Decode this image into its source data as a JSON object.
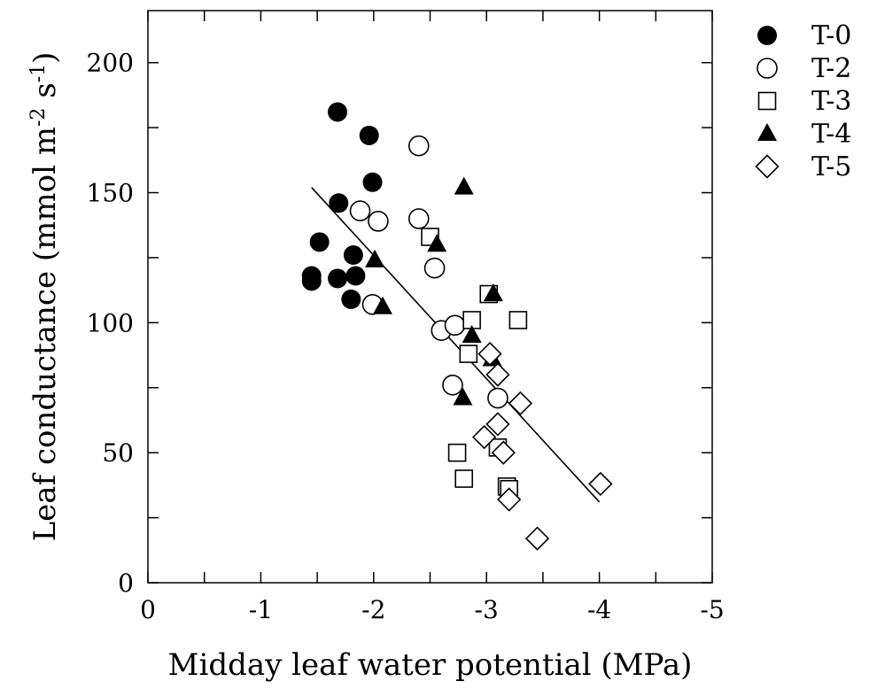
{
  "chart_data": {
    "type": "scatter",
    "title": "",
    "xlabel": "Midday leaf water potential (MPa)",
    "ylabel": {
      "main": "Leaf conductance (mmol m",
      "sup1": "-2",
      "mid": " s",
      "sup2": "-1",
      "end": ")"
    },
    "xlim": [
      0,
      -5
    ],
    "ylim": [
      0,
      220
    ],
    "x_ticks": [
      0,
      -1,
      -2,
      -3,
      -4,
      -5
    ],
    "x_tick_labels": [
      "0",
      "-1",
      "-2",
      "-3",
      "-4",
      "-5"
    ],
    "y_ticks": [
      0,
      50,
      100,
      150,
      200
    ],
    "y_tick_labels": [
      "0",
      "50",
      "100",
      "150",
      "200"
    ],
    "grid": false,
    "legend_position": "outside-right-top",
    "series": [
      {
        "name": "T-0",
        "marker": "circle-filled",
        "points": [
          [
            -1.68,
            181
          ],
          [
            -1.96,
            172
          ],
          [
            -1.99,
            154
          ],
          [
            -1.69,
            146
          ],
          [
            -1.52,
            131
          ],
          [
            -1.82,
            126
          ],
          [
            -1.45,
            118
          ],
          [
            -1.45,
            116
          ],
          [
            -1.68,
            117
          ],
          [
            -1.84,
            118
          ],
          [
            -1.8,
            109
          ]
        ]
      },
      {
        "name": "T-2",
        "marker": "circle-open",
        "points": [
          [
            -2.4,
            168
          ],
          [
            -1.88,
            143
          ],
          [
            -2.04,
            139
          ],
          [
            -2.4,
            140
          ],
          [
            -2.54,
            121
          ],
          [
            -1.99,
            107
          ],
          [
            -2.6,
            97
          ],
          [
            -2.72,
            99
          ],
          [
            -2.7,
            76
          ],
          [
            -3.1,
            71
          ]
        ]
      },
      {
        "name": "T-3",
        "marker": "square-open",
        "points": [
          [
            -2.5,
            133
          ],
          [
            -3.02,
            111
          ],
          [
            -2.87,
            101
          ],
          [
            -3.28,
            101
          ],
          [
            -2.84,
            88
          ],
          [
            -2.74,
            50
          ],
          [
            -3.1,
            52
          ],
          [
            -2.8,
            40
          ],
          [
            -3.18,
            37
          ],
          [
            -3.2,
            36
          ]
        ]
      },
      {
        "name": "T-4",
        "marker": "triangle-filled",
        "points": [
          [
            -2.8,
            152
          ],
          [
            -2.56,
            130
          ],
          [
            -2.01,
            124
          ],
          [
            -2.08,
            106
          ],
          [
            -3.06,
            111
          ],
          [
            -2.87,
            95
          ],
          [
            -3.05,
            86
          ],
          [
            -2.79,
            71
          ]
        ]
      },
      {
        "name": "T-5",
        "marker": "diamond-open",
        "points": [
          [
            -3.03,
            88
          ],
          [
            -3.1,
            80
          ],
          [
            -3.3,
            69
          ],
          [
            -3.1,
            61
          ],
          [
            -2.98,
            56
          ],
          [
            -3.15,
            50
          ],
          [
            -4.01,
            38
          ],
          [
            -3.2,
            32
          ],
          [
            -3.45,
            17
          ]
        ]
      }
    ],
    "regression_line": {
      "x": [
        -1.45,
        -4.0
      ],
      "y": [
        152,
        31
      ]
    }
  }
}
